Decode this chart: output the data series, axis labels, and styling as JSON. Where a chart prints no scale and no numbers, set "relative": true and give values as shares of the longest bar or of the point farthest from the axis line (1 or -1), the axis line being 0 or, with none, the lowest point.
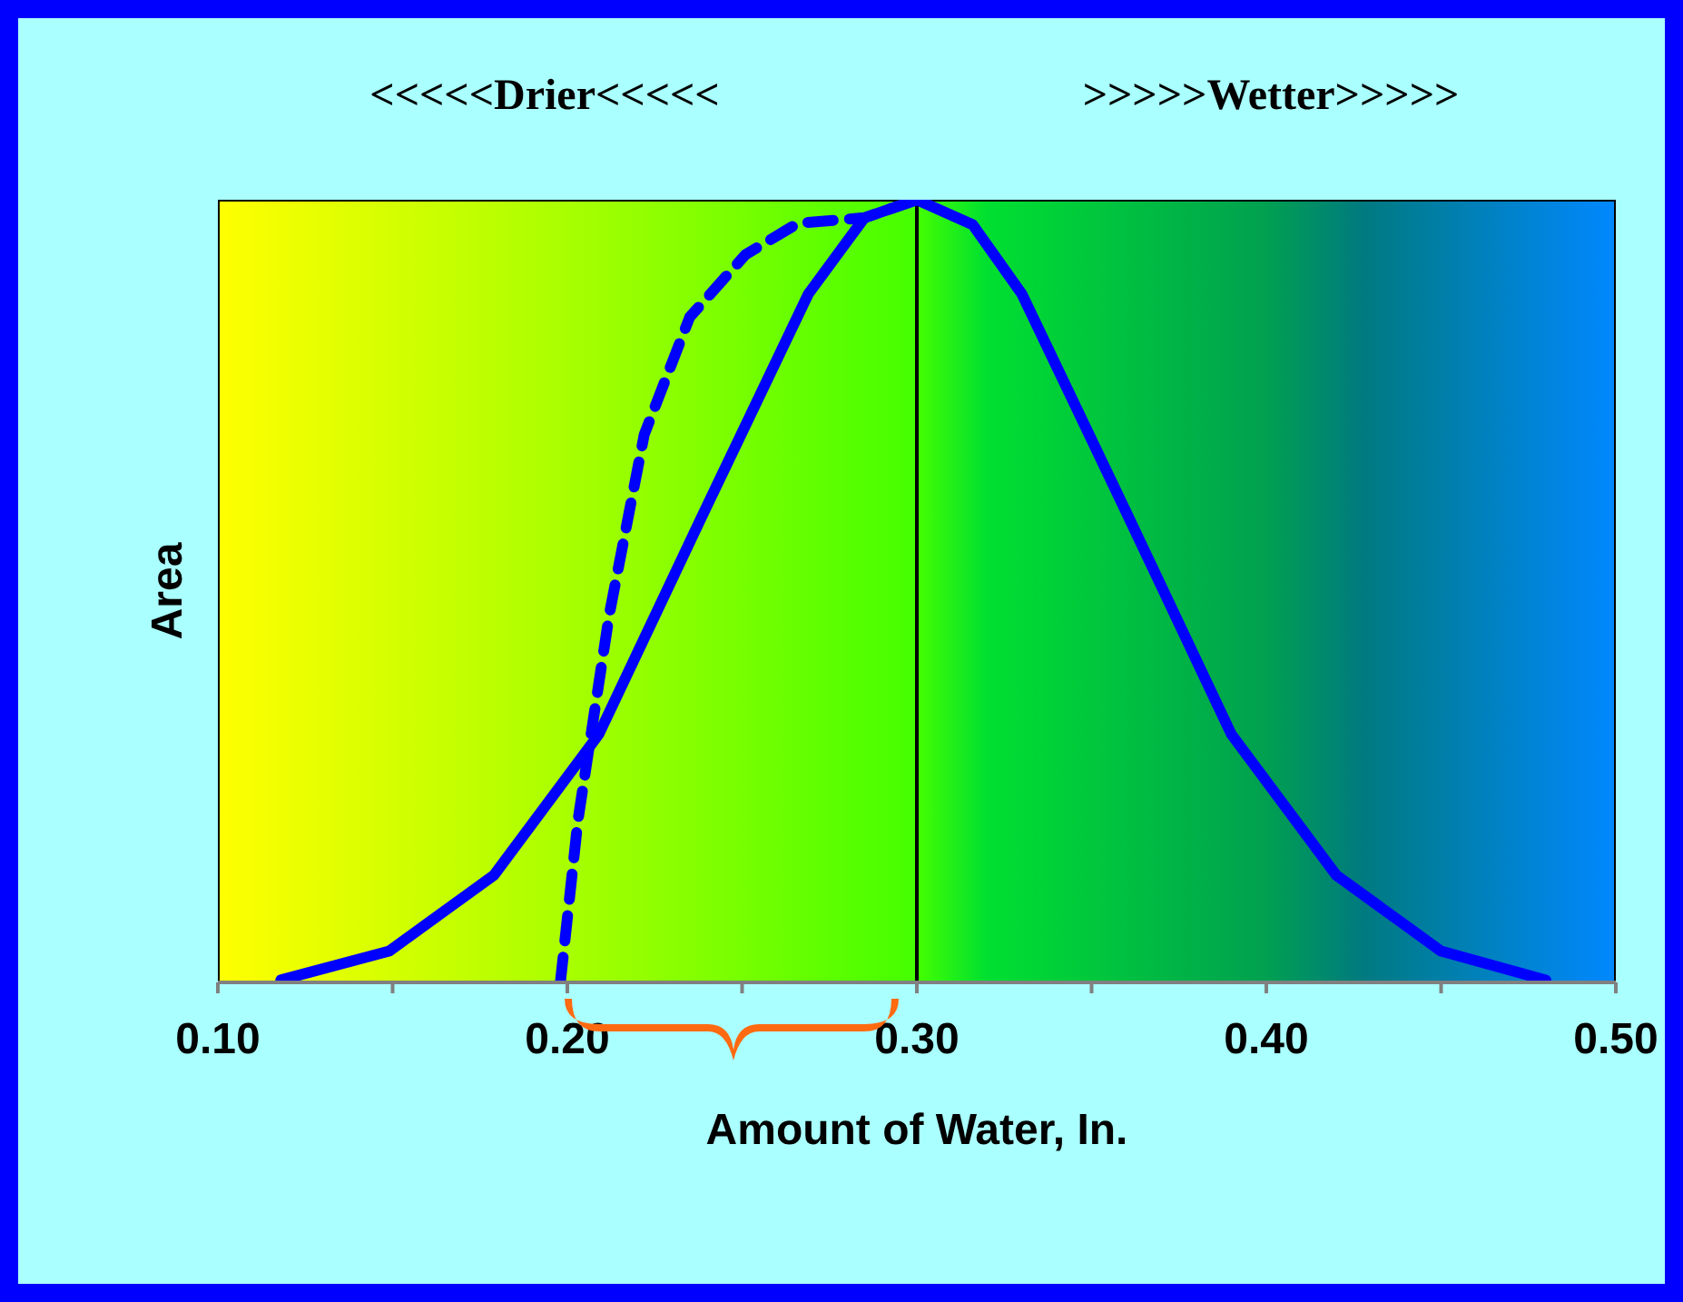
{
  "chart_data": {
    "type": "line",
    "xlabel": "Amount of Water, In.",
    "ylabel": "Area",
    "relative": true,
    "tick_labels": "x",
    "grid": false,
    "legend": false,
    "marker": "none",
    "xlim": [
      0.1,
      0.5
    ],
    "xticks": [
      {
        "value": 0.1,
        "label": "0.10"
      },
      {
        "value": 0.15,
        "label": null
      },
      {
        "value": 0.2,
        "label": "0.20"
      },
      {
        "value": 0.25,
        "label": null
      },
      {
        "value": 0.3,
        "label": "0.30"
      },
      {
        "value": 0.35,
        "label": null
      },
      {
        "value": 0.4,
        "label": "0.40"
      },
      {
        "value": 0.45,
        "label": null
      },
      {
        "value": 0.5,
        "label": "0.50"
      }
    ],
    "annotations": [
      "<<<<<Drier<<<<<",
      ">>>>>Wetter>>>>>"
    ],
    "ref_lines": [
      {
        "axis": "x",
        "value": 0.3,
        "color": "#000000"
      }
    ],
    "series": [
      {
        "color": "#0000ff",
        "line_style": "solid",
        "x": [
          0.118,
          0.149,
          0.179,
          0.209,
          0.239,
          0.269,
          0.285,
          0.3,
          0.316,
          0.33,
          0.36,
          0.39,
          0.42,
          0.45,
          0.48
        ],
        "values": [
          0.003,
          0.04,
          0.137,
          0.317,
          0.6,
          0.88,
          0.977,
          1,
          0.968,
          0.88,
          0.6,
          0.317,
          0.137,
          0.04,
          0.003
        ]
      },
      {
        "color": "#0000ff",
        "line_style": "dashed",
        "x": [
          0.198,
          0.203,
          0.212,
          0.222,
          0.235,
          0.251,
          0.266,
          0.285,
          0.3
        ],
        "values": [
          0,
          0.206,
          0.47,
          0.7,
          0.85,
          0.93,
          0.97,
          0.977,
          1
        ]
      }
    ]
  }
}
